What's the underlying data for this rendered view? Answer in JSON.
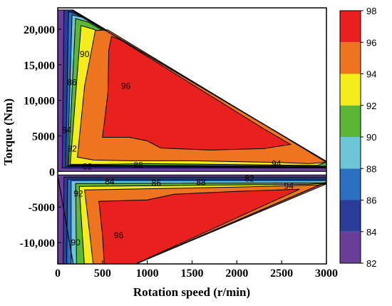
{
  "chart_data": {
    "type": "heatmap",
    "subtype": "efficiency contour map",
    "xlabel": "Rotation speed (r/min)",
    "ylabel": "Torque (Nm)",
    "xlim": [
      0,
      3000
    ],
    "ylim": [
      -13000,
      23000
    ],
    "x_ticks": [
      {
        "value": 0,
        "label": "0"
      },
      {
        "value": 500,
        "label": "500"
      },
      {
        "value": 1000,
        "label": "1000"
      },
      {
        "value": 1500,
        "label": "1500"
      },
      {
        "value": 2000,
        "label": "2000"
      },
      {
        "value": 2500,
        "label": "2500"
      },
      {
        "value": 3000,
        "label": "3000"
      }
    ],
    "y_ticks": [
      {
        "value": 20000,
        "label": "20,000"
      },
      {
        "value": 15000,
        "label": "15,000"
      },
      {
        "value": 10000,
        "label": "10,000"
      },
      {
        "value": 5000,
        "label": "5000"
      },
      {
        "value": 0,
        "label": "0"
      },
      {
        "value": -5000,
        "label": "-5000"
      },
      {
        "value": -10000,
        "label": "-10,000"
      }
    ],
    "colorbar": {
      "range": [
        82,
        98
      ],
      "levels": [
        {
          "from": 82,
          "to": 84,
          "color": "#6b3f99"
        },
        {
          "from": 84,
          "to": 86,
          "color": "#2b3d99"
        },
        {
          "from": 86,
          "to": 88,
          "color": "#2a6fc0"
        },
        {
          "from": 88,
          "to": 90,
          "color": "#6cc6d6"
        },
        {
          "from": 90,
          "to": 92,
          "color": "#5cb834"
        },
        {
          "from": 92,
          "to": 94,
          "color": "#f4ec1c"
        },
        {
          "from": 94,
          "to": 96,
          "color": "#ee7420"
        },
        {
          "from": 96,
          "to": 98,
          "color": "#e8211f"
        }
      ],
      "ticks": [
        "98",
        "96",
        "94",
        "92",
        "90",
        "88",
        "86",
        "84",
        "82"
      ]
    },
    "contour_labels": [
      {
        "text": "90",
        "x": 300,
        "y": 16500
      },
      {
        "text": "86",
        "x": 160,
        "y": 12500
      },
      {
        "text": "96",
        "x": 760,
        "y": 12000
      },
      {
        "text": "84",
        "x": 100,
        "y": 5800
      },
      {
        "text": "92",
        "x": 160,
        "y": 3200
      },
      {
        "text": "82",
        "x": 330,
        "y": 700
      },
      {
        "text": "88",
        "x": 900,
        "y": 900
      },
      {
        "text": "94",
        "x": 2440,
        "y": 1100
      },
      {
        "text": "84",
        "x": 580,
        "y": -1400
      },
      {
        "text": "86",
        "x": 1100,
        "y": -1600
      },
      {
        "text": "88",
        "x": 1600,
        "y": -1500
      },
      {
        "text": "82",
        "x": 2140,
        "y": -1000
      },
      {
        "text": "94",
        "x": 2580,
        "y": -2000
      },
      {
        "text": "92",
        "x": 230,
        "y": -3100
      },
      {
        "text": "90",
        "x": 200,
        "y": -10000
      },
      {
        "text": "96",
        "x": 680,
        "y": -9000
      }
    ],
    "motoring_envelope": {
      "constant_torque": 22700,
      "base_speed": 150,
      "max_speed": 3000,
      "torque_at_max_speed": 1400
    },
    "regenerating_envelope": {
      "min_torque": -13500,
      "max_speed": 3000,
      "torque_at_max_speed": -1500
    },
    "grid": false,
    "legend": "colorbar-right"
  }
}
